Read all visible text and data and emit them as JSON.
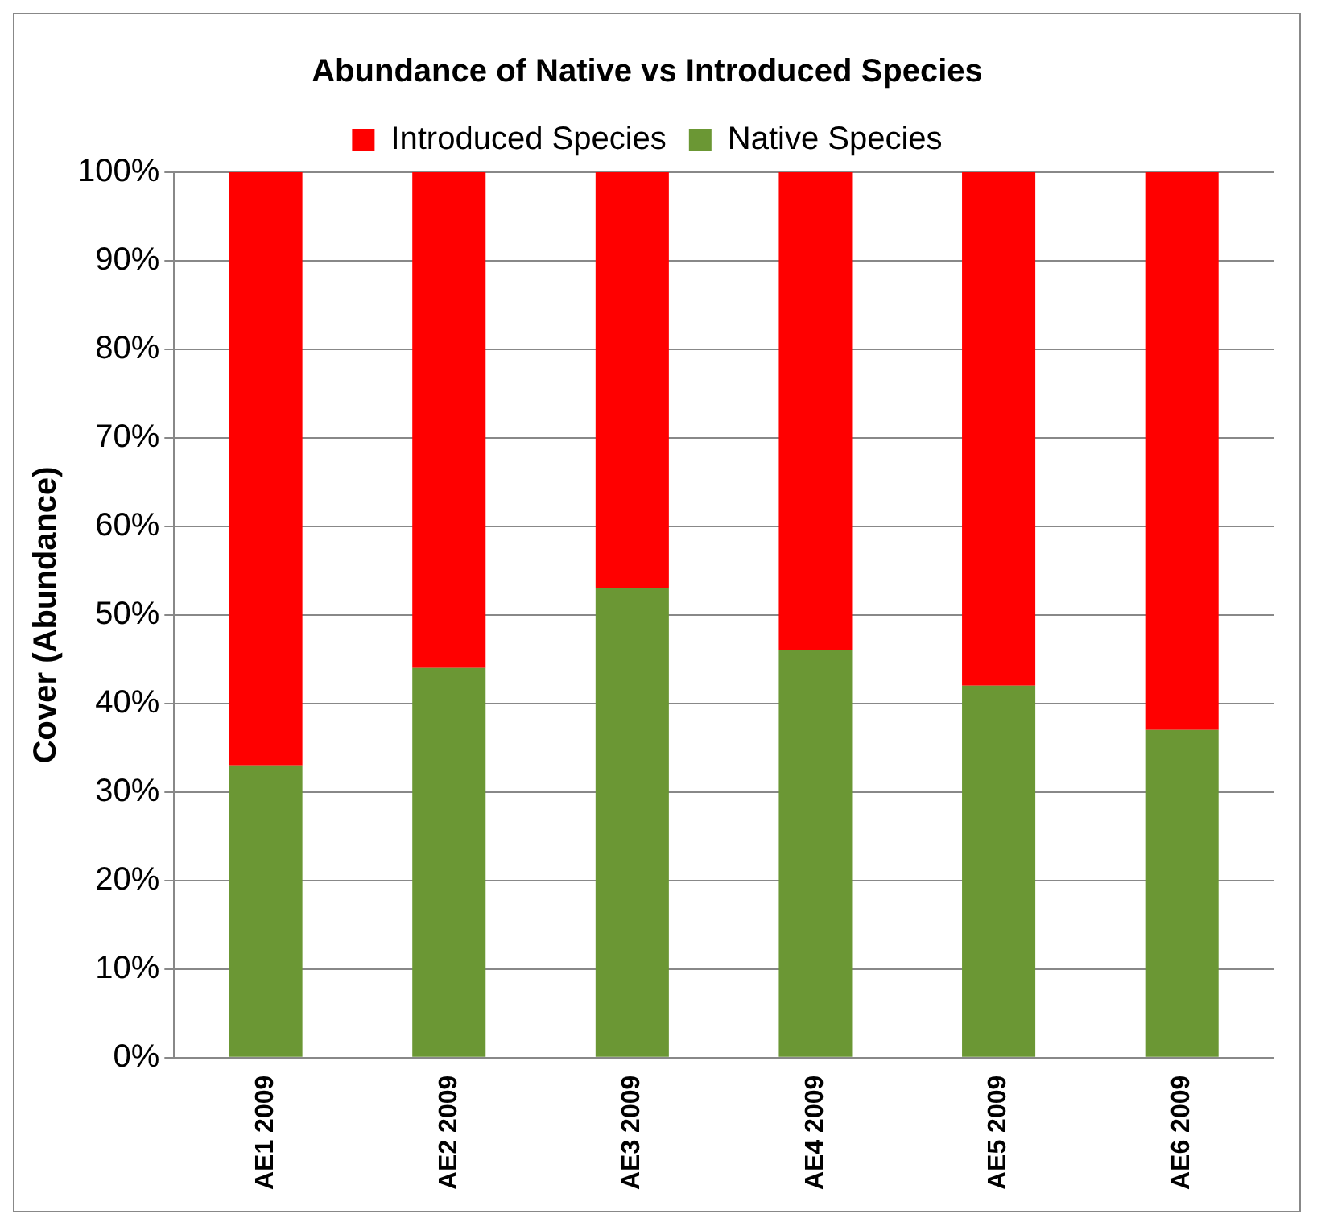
{
  "chart_data": {
    "type": "bar",
    "title": "Abundance of Native vs Introduced Species",
    "ylabel": "Cover (Abundance)",
    "categories": [
      "AE1 2009",
      "AE2 2009",
      "AE3 2009",
      "AE4 2009",
      "AE5 2009",
      "AE6 2009"
    ],
    "series": [
      {
        "name": "Native Species",
        "color": "#6b9734",
        "values": [
          33,
          44,
          53,
          46,
          42,
          37
        ]
      },
      {
        "name": "Introduced Species",
        "color": "#ff0000",
        "values": [
          67,
          56,
          47,
          54,
          58,
          63
        ]
      }
    ],
    "stacked": true,
    "ylim": [
      0,
      100
    ],
    "yticks": [
      {
        "value": 0,
        "label": "0%"
      },
      {
        "value": 10,
        "label": "10%"
      },
      {
        "value": 20,
        "label": "20%"
      },
      {
        "value": 30,
        "label": "30%"
      },
      {
        "value": 40,
        "label": "40%"
      },
      {
        "value": 50,
        "label": "50%"
      },
      {
        "value": 60,
        "label": "60%"
      },
      {
        "value": 70,
        "label": "70%"
      },
      {
        "value": 80,
        "label": "80%"
      },
      {
        "value": 90,
        "label": "90%"
      },
      {
        "value": 100,
        "label": "100%"
      }
    ],
    "grid": "y",
    "legend": "top"
  }
}
